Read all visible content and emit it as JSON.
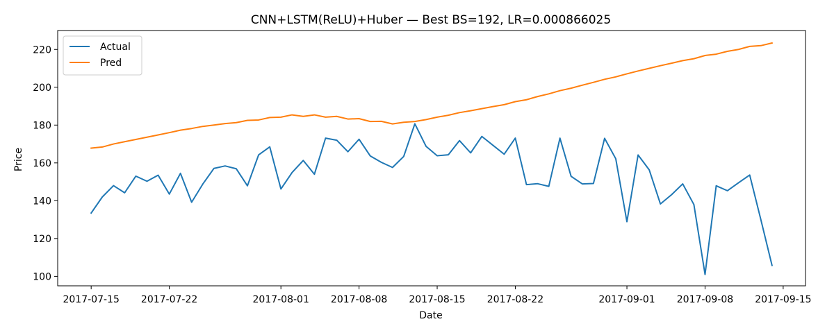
{
  "chart_data": {
    "type": "line",
    "title": "CNN+LSTM(ReLU)+Huber — Best BS=192, LR=0.000866025",
    "xlabel": "Date",
    "ylabel": "Price",
    "x_start": "2017-07-15",
    "x_end": "2017-09-14",
    "xlim": [
      "2017-07-12",
      "2017-09-17"
    ],
    "ylim": [
      95,
      230
    ],
    "x_ticks": [
      "2017-07-15",
      "2017-07-22",
      "2017-08-01",
      "2017-08-08",
      "2017-08-15",
      "2017-08-22",
      "2017-09-01",
      "2017-09-08",
      "2017-09-15"
    ],
    "y_ticks": [
      100,
      120,
      140,
      160,
      180,
      200,
      220
    ],
    "grid": false,
    "legend_position": "top-left",
    "series": [
      {
        "name": "Actual",
        "color": "#1f77b4",
        "values": [
          133.5,
          142,
          148,
          144.2,
          153,
          150.3,
          153.5,
          143.5,
          154.5,
          139.2,
          148.8,
          157.1,
          158.4,
          156.9,
          147.9,
          164.2,
          168.5,
          146.2,
          154.9,
          161.3,
          154,
          173.1,
          172,
          165.9,
          172.5,
          163.7,
          160.3,
          157.6,
          163.4,
          180.7,
          168.8,
          163.8,
          164.3,
          171.8,
          165.3,
          174,
          169.3,
          164.6,
          173.1,
          148.5,
          149,
          147.6,
          173.1,
          152.9,
          148.9,
          149.1,
          173,
          162.2,
          128.9,
          164.2,
          156.3,
          138.3,
          143.2,
          148.9,
          138,
          101,
          147.9,
          145.3,
          149.5,
          153.6,
          130,
          105.8
        ]
      },
      {
        "name": "Pred",
        "color": "#ff7f0e",
        "values": [
          167.8,
          168.4,
          170,
          171.2,
          172.4,
          173.6,
          174.8,
          176,
          177.3,
          178.2,
          179.3,
          180,
          180.8,
          181.3,
          182.5,
          182.7,
          184,
          184.2,
          185.4,
          184.6,
          185.4,
          184.2,
          184.6,
          183.2,
          183.4,
          181.9,
          182,
          180.6,
          181.5,
          181.9,
          182.9,
          184.2,
          185.2,
          186.6,
          187.6,
          188.7,
          189.8,
          190.8,
          192.4,
          193.4,
          195.1,
          196.5,
          198.2,
          199.5,
          201.1,
          202.6,
          204.2,
          205.5,
          207.1,
          208.6,
          210,
          211.4,
          212.7,
          214.1,
          215.1,
          216.8,
          217.5,
          219,
          220,
          221.6,
          222,
          223.4
        ]
      }
    ]
  }
}
